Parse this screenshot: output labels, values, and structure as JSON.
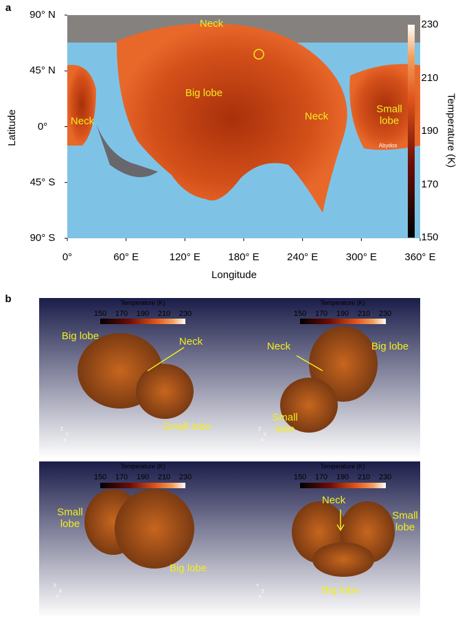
{
  "panel_a": {
    "label": "a",
    "x_axis_title": "Longitude",
    "y_axis_title": "Latitude",
    "x_ticks": [
      "0°",
      "60° E",
      "120° E",
      "180° E",
      "240° E",
      "300° E",
      "360° E"
    ],
    "y_ticks": [
      "90° N",
      "45° N",
      "0°",
      "45° S",
      "90° S"
    ],
    "colorbar": {
      "title": "Temperature (K)",
      "ticks": [
        230,
        210,
        190,
        170,
        150
      ]
    },
    "annotations": [
      "Neck",
      "Big lobe",
      "Neck",
      "Neck",
      "Small lobe",
      "Abydos"
    ]
  },
  "panel_b": {
    "label": "b",
    "views": [
      {
        "colorbar_title": "Temperature (K)",
        "colorbar_ticks": [
          150,
          170,
          190,
          210,
          230
        ],
        "labels": [
          "Big lobe",
          "Neck",
          "Small lobe"
        ],
        "triad": [
          "Z",
          "Y",
          "X"
        ]
      },
      {
        "colorbar_title": "Temperature (K)",
        "colorbar_ticks": [
          150,
          170,
          190,
          210,
          230
        ],
        "labels": [
          "Neck",
          "Big lobe",
          "Small lobe"
        ],
        "triad": [
          "Z",
          "Y",
          "X"
        ]
      },
      {
        "colorbar_title": "Temperature (K)",
        "colorbar_ticks": [
          150,
          170,
          190,
          210,
          230
        ],
        "labels": [
          "Small lobe",
          "Big lobe"
        ],
        "triad": [
          "Z",
          "X",
          "Y"
        ]
      },
      {
        "colorbar_title": "Temperature (K)",
        "colorbar_ticks": [
          150,
          170,
          190,
          210,
          230
        ],
        "labels": [
          "Neck",
          "Small lobe",
          "Big lobe"
        ],
        "triad": [
          "Y",
          "Z",
          "X"
        ]
      }
    ]
  }
}
